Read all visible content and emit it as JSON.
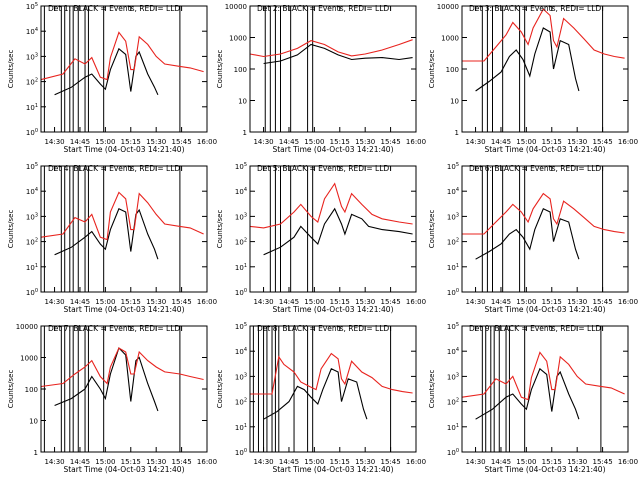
{
  "chart_data": {
    "type": "line",
    "layout": "3x3 grid of panels",
    "colors": {
      "events": "#000000",
      "lld": "#e8231e",
      "axes": "#000000"
    },
    "shared": {
      "xlabel": "Start Time (04-Oct-03 14:21:40)",
      "ylabel": "Counts/sec",
      "x_tick_labels": [
        "14:30",
        "14:45",
        "15:00",
        "15:15",
        "15:30",
        "15:45",
        "16:00"
      ],
      "x_range_minutes_after_1430": [
        -8,
        90
      ],
      "yscale": "log"
    },
    "panels": [
      {
        "title": "Det 1: BLACK = Events, RED = LLD",
        "ylim": [
          1,
          100000
        ],
        "y_tick_labels": [
          "10^0",
          "10^1",
          "10^2",
          "10^3",
          "10^4",
          "10^5"
        ],
        "vlines_minutes": [
          -6,
          4,
          6,
          9,
          11,
          14,
          18,
          20,
          29,
          74
        ],
        "series": [
          {
            "name": "BLACK = Events",
            "x": [
              0,
              10,
              18,
              22,
              27,
              30,
              33,
              38,
              42,
              45,
              48,
              50,
              55,
              59,
              61
            ],
            "y": [
              30,
              60,
              150,
              200,
              80,
              50,
              300,
              2000,
              1200,
              40,
              1000,
              1500,
              200,
              60,
              30
            ]
          },
          {
            "name": "RED = LLD",
            "x": [
              -8,
              5,
              12,
              18,
              22,
              27,
              31,
              33,
              38,
              42,
              45,
              47,
              50,
              55,
              60,
              65,
              74,
              80,
              88
            ],
            "y": [
              120,
              200,
              800,
              500,
              900,
              150,
              120,
              900,
              9000,
              4000,
              300,
              300,
              6000,
              3000,
              1000,
              500,
              400,
              350,
              250
            ]
          }
        ]
      },
      {
        "title": "Det 2: BLACK = Events, RED = LLD",
        "ylim": [
          1,
          10000
        ],
        "y_tick_labels": [
          "1",
          "10",
          "100",
          "1000",
          "10000"
        ],
        "vlines_minutes": [
          1,
          4,
          7,
          10,
          16,
          26,
          29
        ],
        "series": [
          {
            "name": "BLACK = Events",
            "x": [
              0,
              10,
              20,
              28,
              36,
              44,
              52,
              60,
              70,
              80,
              88
            ],
            "y": [
              150,
              180,
              280,
              600,
              450,
              280,
              200,
              220,
              230,
              200,
              230
            ]
          },
          {
            "name": "RED = LLD",
            "x": [
              -8,
              0,
              10,
              20,
              28,
              36,
              44,
              52,
              60,
              70,
              80,
              88
            ],
            "y": [
              300,
              250,
              300,
              450,
              800,
              600,
              350,
              260,
              300,
              400,
              600,
              850
            ]
          }
        ]
      },
      {
        "title": "Det 3: BLACK = Events, RED = LLD",
        "ylim": [
          1,
          10000
        ],
        "y_tick_labels": [
          "1",
          "10",
          "100",
          "1000",
          "10000"
        ],
        "vlines_minutes": [
          4,
          7,
          10,
          16,
          26,
          29,
          75
        ],
        "series": [
          {
            "name": "BLACK = Events",
            "x": [
              0,
              8,
              15,
              20,
              24,
              28,
              32,
              35,
              40,
              44,
              46,
              50,
              55,
              59,
              61
            ],
            "y": [
              20,
              40,
              80,
              250,
              400,
              200,
              60,
              300,
              2000,
              1500,
              100,
              800,
              600,
              50,
              20
            ]
          },
          {
            "name": "RED = LLD",
            "x": [
              -8,
              5,
              12,
              18,
              22,
              27,
              31,
              34,
              40,
              44,
              46,
              48,
              52,
              58,
              64,
              70,
              76,
              82,
              88
            ],
            "y": [
              180,
              180,
              500,
              1200,
              3000,
              1500,
              600,
              2000,
              8000,
              5000,
              800,
              500,
              4000,
              2000,
              900,
              400,
              300,
              250,
              220
            ]
          }
        ]
      },
      {
        "title": "Det 4: BLACK = Events, RED = LLD",
        "ylim": [
          1,
          100000
        ],
        "y_tick_labels": [
          "10^0",
          "10^1",
          "10^2",
          "10^3",
          "10^4",
          "10^5"
        ],
        "vlines_minutes": [
          -6,
          4,
          6,
          9,
          11,
          14,
          18,
          20,
          29,
          74
        ],
        "series": [
          {
            "name": "BLACK = Events",
            "x": [
              0,
              10,
              18,
              22,
              27,
              30,
              33,
              38,
              42,
              45,
              48,
              50,
              55,
              59,
              61
            ],
            "y": [
              30,
              60,
              150,
              250,
              80,
              50,
              300,
              2000,
              1500,
              40,
              1200,
              1800,
              200,
              50,
              20
            ]
          },
          {
            "name": "RED = LLD",
            "x": [
              -8,
              5,
              12,
              18,
              22,
              27,
              31,
              33,
              38,
              42,
              45,
              47,
              50,
              55,
              60,
              65,
              74,
              80,
              88
            ],
            "y": [
              150,
              200,
              900,
              600,
              1200,
              150,
              120,
              1500,
              9000,
              5000,
              300,
              300,
              8000,
              3500,
              1200,
              500,
              400,
              350,
              200
            ]
          }
        ]
      },
      {
        "title": "Det 5: BLACK = Events, RED = LLD",
        "ylim": [
          1,
          100000
        ],
        "y_tick_labels": [
          "10^0",
          "10^1",
          "10^2",
          "10^3",
          "10^4",
          "10^5"
        ],
        "vlines_minutes": [
          4,
          7,
          10,
          16,
          26,
          29
        ],
        "series": [
          {
            "name": "BLACK = Events",
            "x": [
              0,
              10,
              18,
              22,
              28,
              32,
              36,
              42,
              46,
              48,
              52,
              58,
              62,
              70,
              80,
              88
            ],
            "y": [
              30,
              60,
              150,
              400,
              150,
              80,
              500,
              2000,
              500,
              200,
              1200,
              800,
              400,
              300,
              250,
              200
            ]
          },
          {
            "name": "RED = LLD",
            "x": [
              -8,
              0,
              10,
              18,
              22,
              28,
              32,
              36,
              42,
              46,
              48,
              52,
              58,
              64,
              70,
              80,
              88
            ],
            "y": [
              400,
              350,
              500,
              1500,
              3000,
              1000,
              600,
              5000,
              20000,
              2500,
              1500,
              8000,
              3000,
              1200,
              800,
              600,
              500
            ]
          }
        ]
      },
      {
        "title": "Det 6: BLACK = Events, RED = LLD",
        "ylim": [
          1,
          100000
        ],
        "y_tick_labels": [
          "10^0",
          "10^1",
          "10^2",
          "10^3",
          "10^4",
          "10^5"
        ],
        "vlines_minutes": [
          4,
          7,
          10,
          16,
          26,
          29,
          75
        ],
        "series": [
          {
            "name": "BLACK = Events",
            "x": [
              0,
              8,
              15,
              20,
              24,
              28,
              32,
              35,
              40,
              44,
              46,
              50,
              55,
              59,
              61
            ],
            "y": [
              20,
              40,
              80,
              200,
              300,
              150,
              50,
              300,
              2000,
              1500,
              100,
              800,
              600,
              50,
              20
            ]
          },
          {
            "name": "RED = LLD",
            "x": [
              -8,
              5,
              12,
              18,
              22,
              27,
              31,
              34,
              40,
              44,
              46,
              48,
              52,
              58,
              64,
              70,
              76,
              82,
              88
            ],
            "y": [
              200,
              200,
              600,
              1500,
              3000,
              1500,
              600,
              2000,
              8000,
              5000,
              800,
              500,
              4000,
              2000,
              900,
              400,
              300,
              250,
              220
            ]
          }
        ]
      },
      {
        "title": "Det 7: BLACK = Events, RED = LLD",
        "ylim": [
          1,
          10000
        ],
        "y_tick_labels": [
          "1",
          "10",
          "100",
          "1000",
          "10000"
        ],
        "vlines_minutes": [
          -6,
          4,
          6,
          9,
          11,
          14,
          18,
          20,
          29,
          74
        ],
        "series": [
          {
            "name": "BLACK = Events",
            "x": [
              0,
              10,
              18,
              22,
              27,
              30,
              33,
              38,
              42,
              45,
              48,
              50,
              55,
              59,
              61
            ],
            "y": [
              30,
              50,
              100,
              250,
              100,
              50,
              300,
              2000,
              1200,
              40,
              800,
              1000,
              150,
              40,
              20
            ]
          },
          {
            "name": "RED = LLD",
            "x": [
              -8,
              5,
              12,
              18,
              22,
              27,
              31,
              33,
              38,
              42,
              45,
              47,
              50,
              55,
              60,
              65,
              74,
              80,
              88
            ],
            "y": [
              120,
              150,
              300,
              500,
              800,
              250,
              150,
              500,
              2000,
              1500,
              300,
              300,
              1500,
              800,
              500,
              350,
              300,
              250,
              200
            ]
          }
        ]
      },
      {
        "title": "Det 8: BLACK = Events, RED = LLD",
        "ylim": [
          1,
          100000
        ],
        "y_tick_labels": [
          "10^0",
          "10^1",
          "10^2",
          "10^3",
          "10^4",
          "10^5"
        ],
        "vlines_minutes": [
          -6,
          -3,
          0,
          2,
          5,
          7,
          9,
          18,
          26,
          29,
          75
        ],
        "series": [
          {
            "name": "BLACK = Events",
            "x": [
              0,
              8,
              15,
              20,
              24,
              28,
              32,
              35,
              40,
              44,
              46,
              50,
              55,
              59,
              61
            ],
            "y": [
              20,
              40,
              100,
              400,
              300,
              150,
              80,
              300,
              2000,
              1500,
              100,
              800,
              600,
              50,
              20
            ]
          },
          {
            "name": "RED = LLD",
            "x": [
              -8,
              5,
              9,
              12,
              18,
              22,
              27,
              31,
              34,
              40,
              44,
              46,
              48,
              52,
              58,
              64,
              70,
              76,
              82,
              88
            ],
            "y": [
              200,
              200,
              6000,
              3000,
              1500,
              600,
              400,
              300,
              2000,
              8000,
              5000,
              800,
              500,
              4000,
              1500,
              900,
              400,
              300,
              250,
              220
            ]
          }
        ]
      },
      {
        "title": "Det 9: BLACK = Events, RED = LLD",
        "ylim": [
          1,
          100000
        ],
        "y_tick_labels": [
          "10^0",
          "10^1",
          "10^2",
          "10^3",
          "10^4",
          "10^5"
        ],
        "vlines_minutes": [
          4,
          6,
          9,
          11,
          14,
          18,
          20,
          29,
          74
        ],
        "series": [
          {
            "name": "BLACK = Events",
            "x": [
              0,
              10,
              18,
              22,
              27,
              30,
              33,
              38,
              42,
              45,
              48,
              50,
              55,
              59,
              61
            ],
            "y": [
              20,
              50,
              150,
              200,
              80,
              50,
              300,
              2000,
              1200,
              40,
              1000,
              1500,
              200,
              50,
              20
            ]
          },
          {
            "name": "RED = LLD",
            "x": [
              -8,
              5,
              12,
              18,
              22,
              27,
              31,
              33,
              38,
              42,
              45,
              47,
              50,
              55,
              60,
              65,
              74,
              80,
              88
            ],
            "y": [
              150,
              200,
              800,
              500,
              1000,
              150,
              120,
              900,
              9000,
              4000,
              300,
              300,
              6000,
              3000,
              1000,
              500,
              400,
              350,
              200
            ]
          }
        ]
      }
    ]
  }
}
